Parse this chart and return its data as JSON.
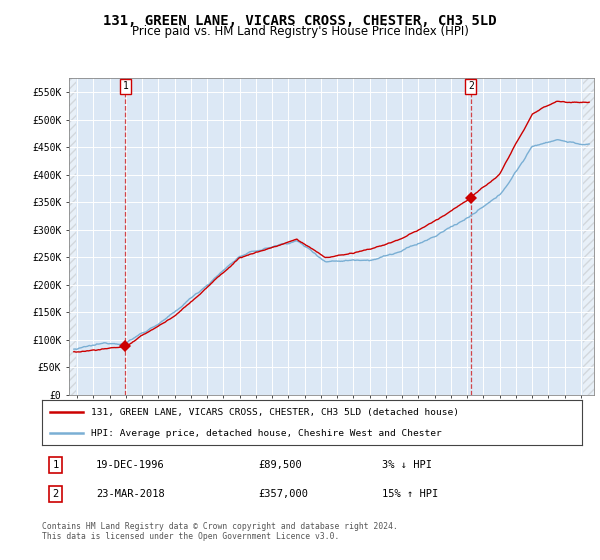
{
  "title": "131, GREEN LANE, VICARS CROSS, CHESTER, CH3 5LD",
  "subtitle": "Price paid vs. HM Land Registry's House Price Index (HPI)",
  "title_fontsize": 10,
  "subtitle_fontsize": 8.5,
  "legend_line1": "131, GREEN LANE, VICARS CROSS, CHESTER, CH3 5LD (detached house)",
  "legend_line2": "HPI: Average price, detached house, Cheshire West and Chester",
  "annotation1_date": "19-DEC-1996",
  "annotation1_price": "£89,500",
  "annotation1_hpi": "3% ↓ HPI",
  "annotation2_date": "23-MAR-2018",
  "annotation2_price": "£357,000",
  "annotation2_hpi": "15% ↑ HPI",
  "footer": "Contains HM Land Registry data © Crown copyright and database right 2024.\nThis data is licensed under the Open Government Licence v3.0.",
  "hpi_color": "#7aafd4",
  "price_color": "#cc0000",
  "annotation_color": "#cc0000",
  "background_color": "#ffffff",
  "plot_bg_color": "#dce8f5",
  "ylim": [
    0,
    575000
  ],
  "yticks": [
    0,
    50000,
    100000,
    150000,
    200000,
    250000,
    300000,
    350000,
    400000,
    450000,
    500000,
    550000
  ],
  "ytick_labels": [
    "£0",
    "£50K",
    "£100K",
    "£150K",
    "£200K",
    "£250K",
    "£300K",
    "£350K",
    "£400K",
    "£450K",
    "£500K",
    "£550K"
  ],
  "sale1_x": 1996.97,
  "sale1_y": 89500,
  "sale2_x": 2018.22,
  "sale2_y": 357000,
  "xmin": 1993.5,
  "xmax": 2025.8
}
